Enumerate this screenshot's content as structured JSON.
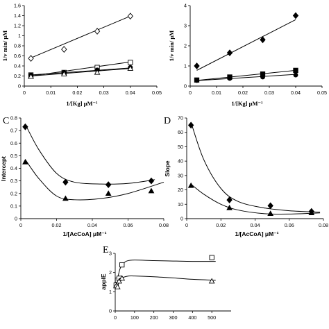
{
  "figure": {
    "panel_letters": [
      "C",
      "D",
      "E"
    ]
  },
  "chart_data": [
    {
      "type": "scatter",
      "panel": "A",
      "xlabel": "1/[Kg]  μM⁻¹",
      "ylabel": "1/v  min/ μM",
      "xlim": [
        0,
        0.05
      ],
      "ylim": [
        0,
        1.6
      ],
      "x_ticks": [
        "0",
        "0.01",
        "0.02",
        "0.03",
        "0.04",
        "0.05"
      ],
      "y_ticks": [
        "0",
        "0.2",
        "0.4",
        "0.6",
        "0.8",
        "1",
        "1.2",
        "1.4",
        "1.6"
      ],
      "grid": false,
      "series": [
        {
          "marker": "diamond-open",
          "x": [
            0.0025,
            0.015,
            0.0275,
            0.04
          ],
          "y": [
            0.55,
            0.73,
            1.09,
            1.39
          ],
          "fit": [
            [
              0.0025,
              0.56
            ],
            [
              0.04,
              1.39
            ]
          ]
        },
        {
          "marker": "square-open",
          "x": [
            0.0025,
            0.015,
            0.0275,
            0.04
          ],
          "y": [
            0.22,
            0.27,
            0.37,
            0.47
          ],
          "fit": [
            [
              0.0025,
              0.2
            ],
            [
              0.04,
              0.48
            ]
          ]
        },
        {
          "marker": "circle-filled",
          "x": [
            0.0025,
            0.015,
            0.0275,
            0.04
          ],
          "y": [
            0.22,
            0.27,
            0.32,
            0.37
          ],
          "fit": [
            [
              0.0025,
              0.22
            ],
            [
              0.04,
              0.36
            ]
          ]
        },
        {
          "marker": "triangle-open",
          "x": [
            0.0025,
            0.015,
            0.0275,
            0.04
          ],
          "y": [
            0.19,
            0.24,
            0.27,
            0.35
          ],
          "fit": [
            [
              0.0025,
              0.2
            ],
            [
              0.04,
              0.35
            ]
          ]
        }
      ]
    },
    {
      "type": "scatter",
      "panel": "B",
      "xlabel": "1/[Kg]  μM⁻¹",
      "ylabel": "1/v  min/ μM",
      "xlim": [
        0,
        0.05
      ],
      "ylim": [
        0,
        4
      ],
      "x_ticks": [
        "0",
        "0.01",
        "0.02",
        "0.03",
        "0.04",
        "0.05"
      ],
      "y_ticks": [
        "0",
        "1",
        "2",
        "3",
        "4"
      ],
      "grid": false,
      "series": [
        {
          "marker": "diamond-filled",
          "x": [
            0.0025,
            0.015,
            0.0275,
            0.04
          ],
          "y": [
            1.0,
            1.65,
            2.3,
            3.5
          ],
          "fit": [
            [
              0.0025,
              0.78
            ],
            [
              0.04,
              3.3
            ]
          ]
        },
        {
          "marker": "square-filled",
          "x": [
            0.0025,
            0.015,
            0.0275,
            0.04
          ],
          "y": [
            0.3,
            0.45,
            0.6,
            0.78
          ],
          "fit": [
            [
              0.0025,
              0.28
            ],
            [
              0.04,
              0.78
            ]
          ]
        },
        {
          "marker": "circle-filled",
          "x": [
            0.0025,
            0.015,
            0.0275,
            0.04
          ],
          "y": [
            0.28,
            0.38,
            0.45,
            0.55
          ],
          "fit": [
            [
              0.0025,
              0.27
            ],
            [
              0.04,
              0.58
            ]
          ]
        }
      ]
    },
    {
      "type": "scatter",
      "panel": "C",
      "xlabel": "1/[AcCoA]  μM⁻¹",
      "ylabel": "Intercept",
      "xlim": [
        0,
        0.08
      ],
      "ylim": [
        0,
        0.8
      ],
      "x_ticks": [
        "0",
        "0.02",
        "0.04",
        "0.06",
        "0.08"
      ],
      "y_ticks": [
        "0",
        "0.1",
        "0.2",
        "0.3",
        "0.4",
        "0.5",
        "0.6",
        "0.7",
        "0.8"
      ],
      "grid": false,
      "series": [
        {
          "marker": "diamond-filled",
          "x": [
            0.0025,
            0.025,
            0.049,
            0.073
          ],
          "y": [
            0.73,
            0.29,
            0.27,
            0.3
          ],
          "fit": [
            [
              0.0025,
              0.75
            ],
            [
              0.01,
              0.55
            ],
            [
              0.02,
              0.36
            ],
            [
              0.03,
              0.29
            ],
            [
              0.045,
              0.275
            ],
            [
              0.06,
              0.28
            ],
            [
              0.075,
              0.31
            ]
          ]
        },
        {
          "marker": "triangle-filled",
          "x": [
            0.0025,
            0.025,
            0.049,
            0.073
          ],
          "y": [
            0.45,
            0.16,
            0.2,
            0.22
          ],
          "fit": [
            [
              0.0025,
              0.47
            ],
            [
              0.01,
              0.32
            ],
            [
              0.02,
              0.18
            ],
            [
              0.03,
              0.15
            ],
            [
              0.045,
              0.16
            ],
            [
              0.06,
              0.2
            ],
            [
              0.08,
              0.29
            ]
          ]
        }
      ]
    },
    {
      "type": "scatter",
      "panel": "D",
      "xlabel": "1/[AcCoA]  μM⁻¹",
      "ylabel": "Slope",
      "xlim": [
        0,
        0.08
      ],
      "ylim": [
        0,
        70
      ],
      "x_ticks": [
        "0",
        "0.02",
        "0.04",
        "0.06",
        "0.08"
      ],
      "y_ticks": [
        "0",
        "10",
        "20",
        "30",
        "40",
        "50",
        "60",
        "70"
      ],
      "grid": false,
      "series": [
        {
          "marker": "diamond-filled",
          "x": [
            0.0025,
            0.025,
            0.049,
            0.073
          ],
          "y": [
            65,
            13,
            9,
            5
          ],
          "fit": [
            [
              0.0025,
              67
            ],
            [
              0.01,
              41
            ],
            [
              0.02,
              21
            ],
            [
              0.03,
              12
            ],
            [
              0.045,
              7.5
            ],
            [
              0.06,
              5.5
            ],
            [
              0.078,
              4.5
            ]
          ]
        },
        {
          "marker": "triangle-filled",
          "x": [
            0.0025,
            0.025,
            0.049,
            0.073
          ],
          "y": [
            23,
            7.5,
            3.5,
            4
          ],
          "fit": [
            [
              0.0025,
              24
            ],
            [
              0.01,
              17
            ],
            [
              0.02,
              10
            ],
            [
              0.03,
              6
            ],
            [
              0.045,
              3.5
            ],
            [
              0.06,
              3.2
            ],
            [
              0.078,
              4
            ]
          ]
        }
      ]
    },
    {
      "type": "scatter",
      "panel": "E",
      "xlabel": "",
      "ylabel": "appIE",
      "xlim": [
        0,
        600
      ],
      "ylim": [
        0,
        3
      ],
      "x_ticks": [
        "0",
        "100",
        "200",
        "300",
        "400",
        "500"
      ],
      "y_ticks": [
        "0",
        "1",
        "2",
        "3"
      ],
      "grid": false,
      "series": [
        {
          "marker": "square-open",
          "x": [
            5,
            12,
            20,
            35,
            500
          ],
          "y": [
            1.35,
            1.6,
            1.7,
            2.4,
            2.78
          ],
          "fit": [
            [
              0,
              1.2
            ],
            [
              10,
              1.6
            ],
            [
              25,
              2.2
            ],
            [
              40,
              2.45
            ],
            [
              60,
              2.6
            ],
            [
              100,
              2.65
            ],
            [
              200,
              2.62
            ],
            [
              300,
              2.6
            ],
            [
              400,
              2.58
            ],
            [
              520,
              2.58
            ]
          ]
        },
        {
          "marker": "triangle-open",
          "x": [
            5,
            12,
            20,
            35,
            500
          ],
          "y": [
            1.3,
            1.25,
            1.55,
            1.7,
            1.55
          ],
          "fit": [
            [
              0,
              1.2
            ],
            [
              10,
              1.5
            ],
            [
              25,
              1.7
            ],
            [
              40,
              1.75
            ],
            [
              70,
              1.82
            ],
            [
              100,
              1.82
            ],
            [
              200,
              1.78
            ],
            [
              300,
              1.72
            ],
            [
              400,
              1.65
            ],
            [
              520,
              1.6
            ]
          ]
        }
      ]
    }
  ]
}
